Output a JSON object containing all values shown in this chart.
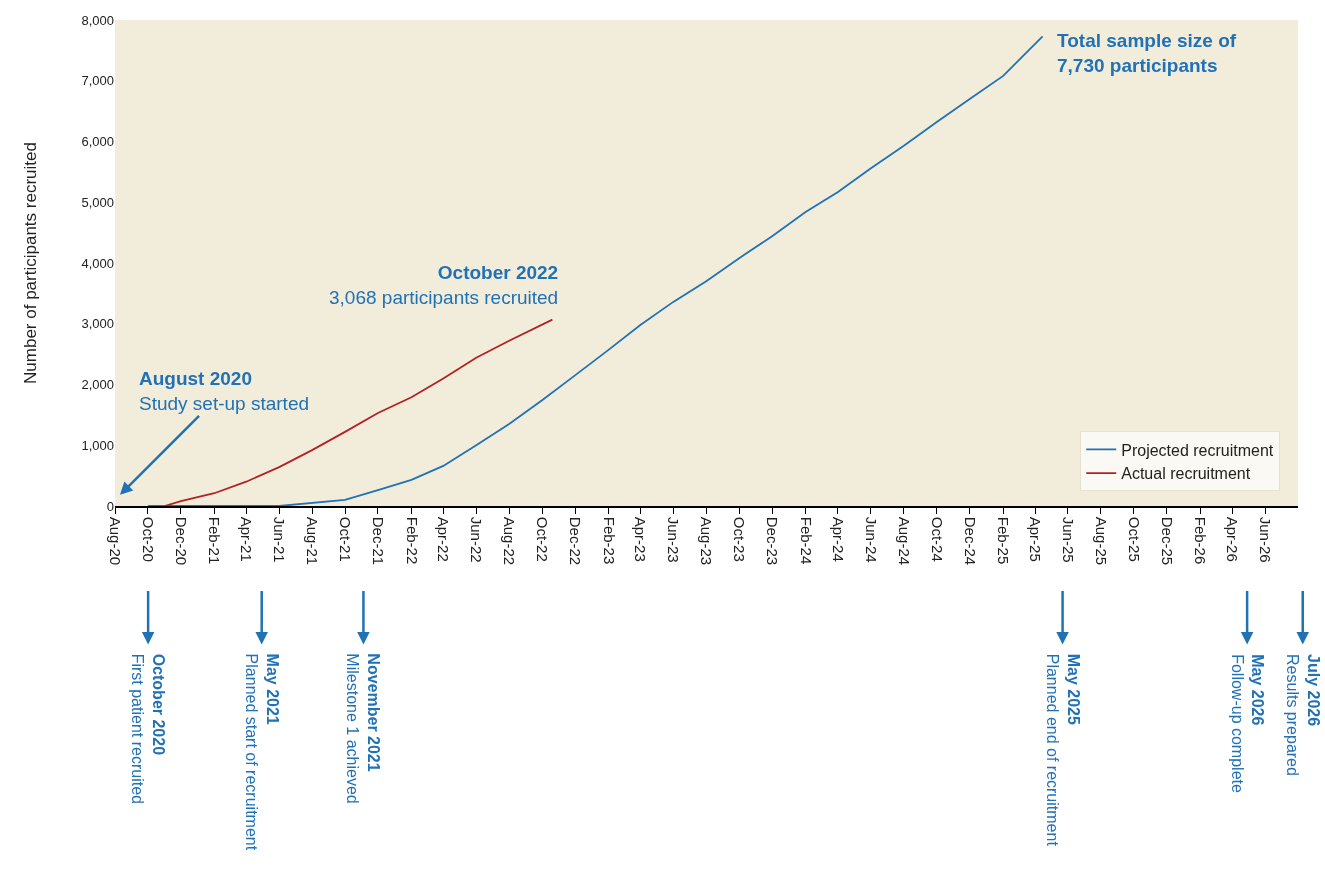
{
  "chart_data": {
    "type": "line",
    "ylabel": "Number of participants recruited",
    "xlim": [
      "2020-08-01",
      "2026-08-01"
    ],
    "ylim": [
      0,
      8000
    ],
    "yticks": [
      0,
      {
        "value": 1000,
        "label": "1,000"
      },
      {
        "value": 2000,
        "label": "2,000"
      },
      {
        "value": 3000,
        "label": "3,000"
      },
      {
        "value": 4000,
        "label": "4,000"
      },
      {
        "value": 5000,
        "label": "5,000"
      },
      {
        "value": 6000,
        "label": "6,000"
      },
      {
        "value": 7000,
        "label": "7,000"
      },
      {
        "value": 8000,
        "label": "8,000"
      }
    ],
    "xticks": [
      {
        "value": "2020-08",
        "label": "Aug-20"
      },
      {
        "value": "2020-10",
        "label": "Oct-20"
      },
      {
        "value": "2020-12",
        "label": "Dec-20"
      },
      {
        "value": "2021-02",
        "label": "Feb-21"
      },
      {
        "value": "2021-04",
        "label": "Apr-21"
      },
      {
        "value": "2021-06",
        "label": "Jun-21"
      },
      {
        "value": "2021-08",
        "label": "Aug-21"
      },
      {
        "value": "2021-10",
        "label": "Oct-21"
      },
      {
        "value": "2021-12",
        "label": "Dec-21"
      },
      {
        "value": "2022-02",
        "label": "Feb-22"
      },
      {
        "value": "2022-04",
        "label": "Apr-22"
      },
      {
        "value": "2022-06",
        "label": "Jun-22"
      },
      {
        "value": "2022-08",
        "label": "Aug-22"
      },
      {
        "value": "2022-10",
        "label": "Oct-22"
      },
      {
        "value": "2022-12",
        "label": "Dec-22"
      },
      {
        "value": "2023-02",
        "label": "Feb-23"
      },
      {
        "value": "2023-04",
        "label": "Apr-23"
      },
      {
        "value": "2023-06",
        "label": "Jun-23"
      },
      {
        "value": "2023-08",
        "label": "Aug-23"
      },
      {
        "value": "2023-10",
        "label": "Oct-23"
      },
      {
        "value": "2023-12",
        "label": "Dec-23"
      },
      {
        "value": "2024-02",
        "label": "Feb-24"
      },
      {
        "value": "2024-04",
        "label": "Apr-24"
      },
      {
        "value": "2024-06",
        "label": "Jun-24"
      },
      {
        "value": "2024-08",
        "label": "Aug-24"
      },
      {
        "value": "2024-10",
        "label": "Oct-24"
      },
      {
        "value": "2024-12",
        "label": "Dec-24"
      },
      {
        "value": "2025-02",
        "label": "Feb-25"
      },
      {
        "value": "2025-04",
        "label": "Apr-25"
      },
      {
        "value": "2025-06",
        "label": "Jun-25"
      },
      {
        "value": "2025-08",
        "label": "Aug-25"
      },
      {
        "value": "2025-10",
        "label": "Oct-25"
      },
      {
        "value": "2025-12",
        "label": "Dec-25"
      },
      {
        "value": "2026-02",
        "label": "Feb-26"
      },
      {
        "value": "2026-04",
        "label": "Apr-26"
      },
      {
        "value": "2026-06",
        "label": "Jun-26"
      }
    ],
    "legend": "bottom right",
    "series": [
      {
        "name": "Projected recruitment",
        "color": "#2171b5",
        "x": [
          "2020-10",
          "2020-12",
          "2021-06",
          "2021-10",
          "2021-12",
          "2022-02",
          "2022-04",
          "2022-06",
          "2022-08",
          "2022-10",
          "2022-12",
          "2023-02",
          "2023-04",
          "2023-06",
          "2023-08",
          "2023-10",
          "2023-12",
          "2024-02",
          "2024-04",
          "2024-06",
          "2024-08",
          "2024-10",
          "2024-12",
          "2025-02",
          "2025-04-15"
        ],
        "values": [
          0,
          0,
          0,
          100,
          260,
          430,
          660,
          1000,
          1350,
          1740,
          2150,
          2570,
          2980,
          3360,
          3700,
          4080,
          4440,
          4840,
          5170,
          5560,
          5930,
          6320,
          6700,
          7080,
          7730
        ]
      },
      {
        "name": "Actual recruitment",
        "color": "#b22222",
        "x": [
          "2020-11",
          "2020-12",
          "2021-02",
          "2021-04",
          "2021-06",
          "2021-08",
          "2021-10",
          "2021-12",
          "2022-02",
          "2022-04",
          "2022-06",
          "2022-08",
          "2022-10-20"
        ],
        "values": [
          0,
          80,
          210,
          400,
          640,
          920,
          1220,
          1530,
          1790,
          2100,
          2440,
          2720,
          3068
        ]
      }
    ],
    "annotations": [
      "August 2020\nStudy set-up started",
      {
        "text": "October 2022\n3,068 participants recruited",
        "x": "2022-10-20",
        "y": 3068
      },
      {
        "text": "Total sample size of\n7,730 participants",
        "x": "2025-04-15",
        "y": 7730
      },
      "October 2020\nFirst patient recruited",
      "May 2021\nPlanned start of recruitment",
      "November 2021\nMilestone 1 achieved",
      "May 2025\nPlanned end of recruitment",
      "May 2026\nFollow-up complete",
      "July 2026\nResults prepared"
    ]
  }
}
